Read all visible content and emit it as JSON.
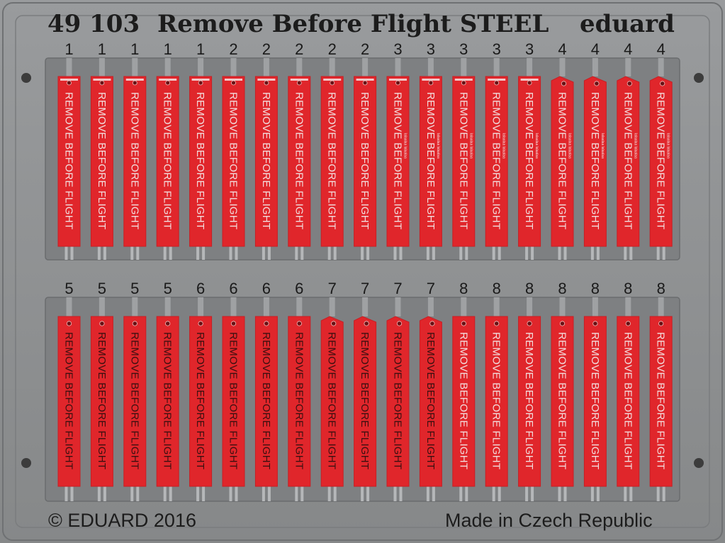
{
  "header": {
    "set_number": "49 103",
    "set_name": "Remove Before Flight STEEL",
    "brand": "eduard"
  },
  "footer": {
    "copyright": "© EDUARD 2016",
    "origin": "Made in Czech Republic"
  },
  "tag_text": "REMOVE BEFORE FLIGHT",
  "tag_small_text": "lalaalaa lalaalaa",
  "rows": [
    {
      "part_numbers": [
        "1",
        "1",
        "1",
        "1",
        "1",
        "2",
        "2",
        "2",
        "2",
        "2",
        "3",
        "3",
        "3",
        "3",
        "3",
        "4",
        "4",
        "4",
        "4"
      ]
    },
    {
      "part_numbers": [
        "5",
        "5",
        "5",
        "5",
        "6",
        "6",
        "6",
        "6",
        "7",
        "7",
        "7",
        "7",
        "8",
        "8",
        "8",
        "8",
        "8",
        "8",
        "8"
      ]
    }
  ],
  "colors": {
    "fret": "#8d8f91",
    "recess": "#7d7f81",
    "tag_red": "#e0262b",
    "tag_red_dark": "#c81f24"
  }
}
